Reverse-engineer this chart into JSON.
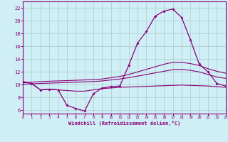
{
  "background_color": "#d0eef5",
  "grid_color": "#aacccc",
  "line_color": "#880077",
  "xlim": [
    0,
    23
  ],
  "ylim": [
    5.5,
    23.0
  ],
  "xticks": [
    0,
    1,
    2,
    3,
    4,
    5,
    6,
    7,
    8,
    9,
    10,
    11,
    12,
    13,
    14,
    15,
    16,
    17,
    18,
    19,
    20,
    21,
    22,
    23
  ],
  "yticks": [
    6,
    8,
    10,
    12,
    14,
    16,
    18,
    20,
    22
  ],
  "hours": [
    0,
    1,
    2,
    3,
    4,
    5,
    6,
    7,
    8,
    9,
    10,
    11,
    12,
    13,
    14,
    15,
    16,
    17,
    18,
    19,
    20,
    21,
    22,
    23
  ],
  "main_curve": [
    10.5,
    10.2,
    9.2,
    9.3,
    9.2,
    6.8,
    6.3,
    5.9,
    8.6,
    9.5,
    9.7,
    9.8,
    13.0,
    16.5,
    18.3,
    20.7,
    21.5,
    21.8,
    20.5,
    17.0,
    13.2,
    12.0,
    10.2,
    9.8
  ],
  "trend_line1": [
    10.3,
    10.4,
    10.5,
    10.55,
    10.6,
    10.65,
    10.7,
    10.75,
    10.8,
    10.9,
    11.1,
    11.3,
    11.6,
    12.0,
    12.4,
    12.8,
    13.2,
    13.5,
    13.5,
    13.3,
    13.0,
    12.5,
    12.1,
    11.8
  ],
  "trend_line2": [
    10.1,
    10.15,
    10.2,
    10.25,
    10.3,
    10.35,
    10.4,
    10.45,
    10.5,
    10.6,
    10.75,
    10.9,
    11.1,
    11.35,
    11.6,
    11.85,
    12.1,
    12.35,
    12.4,
    12.25,
    12.0,
    11.6,
    11.2,
    11.0
  ],
  "flat_line": [
    10.5,
    10.2,
    9.2,
    9.3,
    9.2,
    9.1,
    9.0,
    9.0,
    9.2,
    9.4,
    9.5,
    9.6,
    9.65,
    9.7,
    9.75,
    9.8,
    9.85,
    9.9,
    9.95,
    9.9,
    9.85,
    9.8,
    9.7,
    9.6
  ],
  "xlabel": "Windchill (Refroidissement éolien,°C)"
}
